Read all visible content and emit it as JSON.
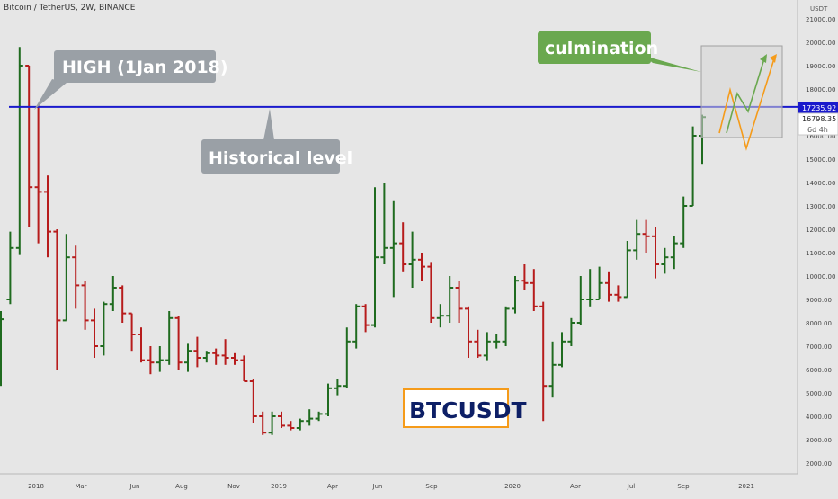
{
  "header": {
    "symbol_line": "Bitcoin / TetherUS, 2W, BINANCE"
  },
  "axis": {
    "currency": "USDT"
  },
  "price_tags": {
    "level": "17235.92",
    "last": "16798.35",
    "countdown": "6d 4h"
  },
  "annotations": {
    "high_label": "HIGH (1Jan 2018)",
    "level_label": "Historical level",
    "culmination_label": "culmination",
    "ticker_label": "BTCUSDT"
  },
  "colors": {
    "up": "#1f6b1f",
    "down": "#b71c1c",
    "level_line": "#1a1acc",
    "callout": "#9aa0a6",
    "culmination_bg": "#6aa84f",
    "projection_orange": "#f59b1a",
    "projection_green": "#6aa84f",
    "ticker_border": "#f59b1a",
    "ticker_text": "#0d1f66"
  },
  "chart_data": {
    "type": "ohlc",
    "title": "Bitcoin / TetherUS, 2W, BINANCE",
    "ylim": [
      1500,
      21500
    ],
    "y_ticks": [
      2000,
      3000,
      4000,
      5000,
      6000,
      7000,
      8000,
      9000,
      10000,
      11000,
      12000,
      13000,
      14000,
      15000,
      16000,
      17000,
      18000,
      19000,
      20000,
      21000
    ],
    "x_tick_labels": [
      "2018",
      "Mar",
      "Jun",
      "Aug",
      "Nov",
      "2019",
      "Apr",
      "Jun",
      "Sep",
      "2020",
      "Apr",
      "Jul",
      "Sep",
      "2021"
    ],
    "horizontal_level": 17235.92,
    "bars": [
      {
        "o": 8100,
        "h": 8500,
        "l": 5300,
        "c": 8150
      },
      {
        "o": 9000,
        "h": 11900,
        "l": 8800,
        "c": 11200
      },
      {
        "o": 11200,
        "h": 19800,
        "l": 10900,
        "c": 19000
      },
      {
        "o": 19000,
        "h": 19000,
        "l": 12100,
        "c": 13800
      },
      {
        "o": 13800,
        "h": 17300,
        "l": 11400,
        "c": 13600
      },
      {
        "o": 13600,
        "h": 14300,
        "l": 10800,
        "c": 11900
      },
      {
        "o": 11900,
        "h": 12000,
        "l": 6000,
        "c": 8100
      },
      {
        "o": 8100,
        "h": 11800,
        "l": 8100,
        "c": 10800
      },
      {
        "o": 10800,
        "h": 11300,
        "l": 8600,
        "c": 9600
      },
      {
        "o": 9600,
        "h": 9800,
        "l": 7700,
        "c": 8100
      },
      {
        "o": 8100,
        "h": 8600,
        "l": 6500,
        "c": 7000
      },
      {
        "o": 7000,
        "h": 8900,
        "l": 6600,
        "c": 8800
      },
      {
        "o": 8800,
        "h": 10000,
        "l": 8500,
        "c": 9500
      },
      {
        "o": 9500,
        "h": 9600,
        "l": 8000,
        "c": 8400
      },
      {
        "o": 8400,
        "h": 8400,
        "l": 6800,
        "c": 7500
      },
      {
        "o": 7500,
        "h": 7800,
        "l": 6300,
        "c": 6400
      },
      {
        "o": 6400,
        "h": 7000,
        "l": 5800,
        "c": 6300
      },
      {
        "o": 6300,
        "h": 7000,
        "l": 5900,
        "c": 6400
      },
      {
        "o": 6400,
        "h": 8500,
        "l": 6200,
        "c": 8200
      },
      {
        "o": 8200,
        "h": 8300,
        "l": 6000,
        "c": 6300
      },
      {
        "o": 6300,
        "h": 7100,
        "l": 5900,
        "c": 6800
      },
      {
        "o": 6800,
        "h": 7400,
        "l": 6100,
        "c": 6500
      },
      {
        "o": 6500,
        "h": 6800,
        "l": 6300,
        "c": 6700
      },
      {
        "o": 6700,
        "h": 6900,
        "l": 6200,
        "c": 6600
      },
      {
        "o": 6600,
        "h": 7300,
        "l": 6200,
        "c": 6500
      },
      {
        "o": 6500,
        "h": 6700,
        "l": 6200,
        "c": 6400
      },
      {
        "o": 6400,
        "h": 6600,
        "l": 5500,
        "c": 5500
      },
      {
        "o": 5500,
        "h": 5600,
        "l": 3700,
        "c": 4000
      },
      {
        "o": 4000,
        "h": 4200,
        "l": 3200,
        "c": 3300
      },
      {
        "o": 3300,
        "h": 4200,
        "l": 3200,
        "c": 4000
      },
      {
        "o": 4000,
        "h": 4200,
        "l": 3500,
        "c": 3600
      },
      {
        "o": 3600,
        "h": 3800,
        "l": 3400,
        "c": 3500
      },
      {
        "o": 3500,
        "h": 3900,
        "l": 3400,
        "c": 3800
      },
      {
        "o": 3800,
        "h": 4300,
        "l": 3600,
        "c": 3900
      },
      {
        "o": 3900,
        "h": 4200,
        "l": 3800,
        "c": 4100
      },
      {
        "o": 4100,
        "h": 5400,
        "l": 4000,
        "c": 5200
      },
      {
        "o": 5200,
        "h": 5600,
        "l": 4900,
        "c": 5300
      },
      {
        "o": 5300,
        "h": 7800,
        "l": 5200,
        "c": 7200
      },
      {
        "o": 7200,
        "h": 8800,
        "l": 6900,
        "c": 8700
      },
      {
        "o": 8700,
        "h": 8800,
        "l": 7600,
        "c": 7900
      },
      {
        "o": 7900,
        "h": 13800,
        "l": 7800,
        "c": 10800
      },
      {
        "o": 10800,
        "h": 14000,
        "l": 10500,
        "c": 11200
      },
      {
        "o": 11200,
        "h": 13200,
        "l": 9100,
        "c": 11400
      },
      {
        "o": 11400,
        "h": 12300,
        "l": 10200,
        "c": 10500
      },
      {
        "o": 10500,
        "h": 11900,
        "l": 9500,
        "c": 10700
      },
      {
        "o": 10700,
        "h": 11000,
        "l": 9800,
        "c": 10400
      },
      {
        "o": 10400,
        "h": 10600,
        "l": 8000,
        "c": 8200
      },
      {
        "o": 8200,
        "h": 8800,
        "l": 7800,
        "c": 8300
      },
      {
        "o": 8300,
        "h": 10000,
        "l": 8000,
        "c": 9500
      },
      {
        "o": 9500,
        "h": 9800,
        "l": 8000,
        "c": 8600
      },
      {
        "o": 8600,
        "h": 8700,
        "l": 6500,
        "c": 7200
      },
      {
        "o": 7200,
        "h": 7700,
        "l": 6500,
        "c": 6600
      },
      {
        "o": 6600,
        "h": 7600,
        "l": 6400,
        "c": 7200
      },
      {
        "o": 7200,
        "h": 7500,
        "l": 6900,
        "c": 7200
      },
      {
        "o": 7200,
        "h": 8700,
        "l": 7000,
        "c": 8600
      },
      {
        "o": 8600,
        "h": 10000,
        "l": 8400,
        "c": 9800
      },
      {
        "o": 9800,
        "h": 10500,
        "l": 9400,
        "c": 9700
      },
      {
        "o": 9700,
        "h": 10300,
        "l": 8500,
        "c": 8700
      },
      {
        "o": 8700,
        "h": 8900,
        "l": 3800,
        "c": 5300
      },
      {
        "o": 5300,
        "h": 7200,
        "l": 4800,
        "c": 6200
      },
      {
        "o": 6200,
        "h": 7600,
        "l": 6100,
        "c": 7200
      },
      {
        "o": 7200,
        "h": 8200,
        "l": 7000,
        "c": 8000
      },
      {
        "o": 8000,
        "h": 10000,
        "l": 7900,
        "c": 9000
      },
      {
        "o": 9000,
        "h": 10300,
        "l": 8700,
        "c": 9000
      },
      {
        "o": 9000,
        "h": 10400,
        "l": 9000,
        "c": 9700
      },
      {
        "o": 9700,
        "h": 10200,
        "l": 8900,
        "c": 9200
      },
      {
        "o": 9200,
        "h": 9600,
        "l": 8900,
        "c": 9100
      },
      {
        "o": 9100,
        "h": 11500,
        "l": 9100,
        "c": 11100
      },
      {
        "o": 11100,
        "h": 12400,
        "l": 10700,
        "c": 11800
      },
      {
        "o": 11800,
        "h": 12400,
        "l": 11000,
        "c": 11700
      },
      {
        "o": 11700,
        "h": 12100,
        "l": 9900,
        "c": 10500
      },
      {
        "o": 10500,
        "h": 11200,
        "l": 10100,
        "c": 10800
      },
      {
        "o": 10800,
        "h": 11700,
        "l": 10300,
        "c": 11400
      },
      {
        "o": 11400,
        "h": 13400,
        "l": 11200,
        "c": 13000
      },
      {
        "o": 13000,
        "h": 16400,
        "l": 13000,
        "c": 16000
      },
      {
        "o": 16000,
        "h": 16900,
        "l": 14800,
        "c": 16798.35
      }
    ],
    "projections": [
      {
        "color": "orange",
        "points": [
          [
            16000,
            16300
          ],
          [
            18000,
            0
          ],
          [
            15600,
            0
          ],
          [
            19400,
            0
          ]
        ]
      },
      {
        "color": "green",
        "points": [
          [
            16400,
            0
          ],
          [
            17800,
            0
          ],
          [
            17300,
            0
          ],
          [
            19500,
            0
          ]
        ]
      }
    ]
  }
}
